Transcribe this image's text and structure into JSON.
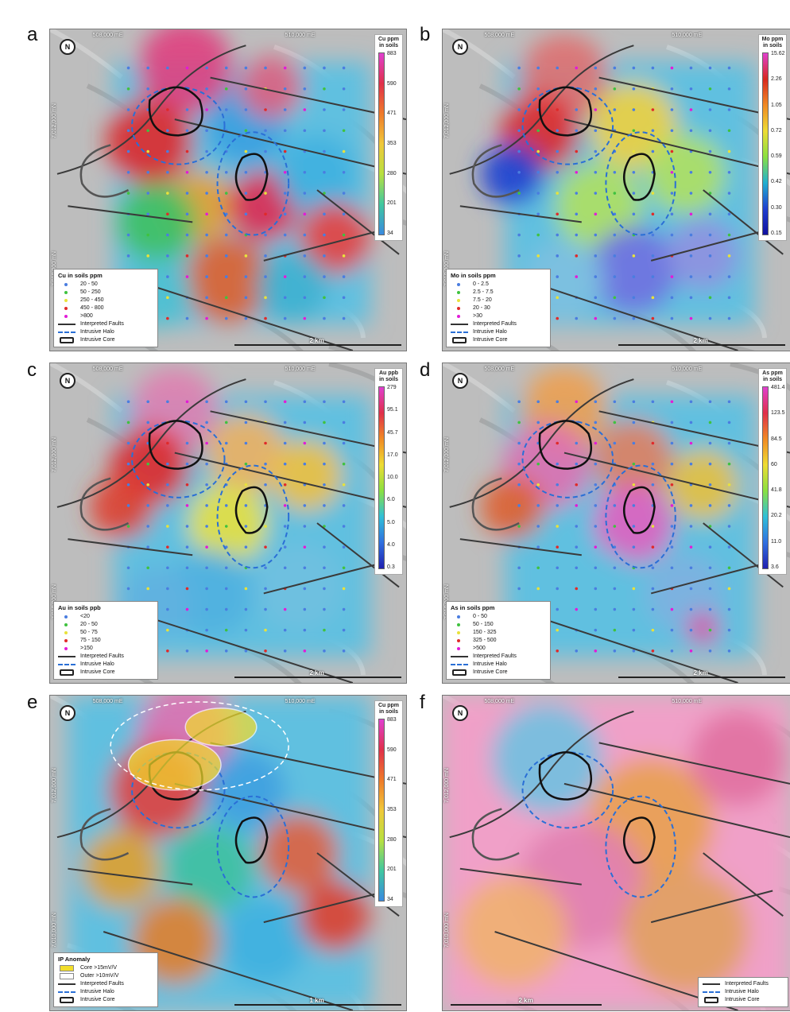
{
  "colors": {
    "fault": "#3a3a3a",
    "halo": "#2a6fd6",
    "core": "#111111"
  },
  "panels": [
    {
      "id": "a",
      "letter": "a",
      "coord_x1": "508,000 mE",
      "coord_x2": "510,000 mE",
      "coord_y1": "7,012,000 mN",
      "coord_y2": "7,010,000 mN",
      "colorbar": {
        "title_line1": "Cu ppm",
        "title_line2": "in soils",
        "ticks": [
          "883",
          "590",
          "471",
          "353",
          "280",
          "201",
          "34"
        ],
        "variant": "cu"
      },
      "legend": {
        "title": "Cu in soils ppm",
        "entries": [
          {
            "label": "20 - 50",
            "color": "#4a7de0"
          },
          {
            "label": "50 - 250",
            "color": "#3fc23f"
          },
          {
            "label": "250 - 450",
            "color": "#e8e23a"
          },
          {
            "label": "450 - 800",
            "color": "#e02a2a"
          },
          {
            "label": ">800",
            "color": "#e21bd8"
          }
        ]
      },
      "lines": {
        "faults": "Interpreted Faults",
        "halo": "Intrusive Halo",
        "core": "Intrusive Core"
      },
      "scale": "2 km"
    },
    {
      "id": "b",
      "letter": "b",
      "coord_x1": "508,000 mE",
      "coord_x2": "510,000 mE",
      "coord_y1": "7,012,000 mN",
      "coord_y2": "7,010,000 mN",
      "colorbar": {
        "title_line1": "Mo ppm",
        "title_line2": "in soils",
        "ticks": [
          "15.62",
          "2.26",
          "1.05",
          "0.72",
          "0.59",
          "0.42",
          "0.30",
          "0.15"
        ],
        "variant": "mo"
      },
      "legend": {
        "title": "Mo in soils ppm",
        "entries": [
          {
            "label": "0 - 2.5",
            "color": "#4a7de0"
          },
          {
            "label": "2.5 - 7.5",
            "color": "#3fc23f"
          },
          {
            "label": "7.5 - 20",
            "color": "#e8e23a"
          },
          {
            "label": "20 - 30",
            "color": "#e02a2a"
          },
          {
            "label": ">30",
            "color": "#e21bd8"
          }
        ]
      },
      "lines": {
        "faults": "Interpreted Faults",
        "halo": "Intrusive Halo",
        "core": "Intrusive Core"
      },
      "scale": "2 km"
    },
    {
      "id": "c",
      "letter": "c",
      "coord_x1": "508,000 mE",
      "coord_x2": "510,000 mE",
      "coord_y1": "7,012,000 mN",
      "coord_y2": "7,010,000 mN",
      "colorbar": {
        "title_line1": "Au ppb",
        "title_line2": "in soils",
        "ticks": [
          "279",
          "95.1",
          "45.7",
          "17.0",
          "10.0",
          "6.0",
          "5.0",
          "4.0",
          "0.3"
        ],
        "variant": "au"
      },
      "legend": {
        "title": "Au in soils ppb",
        "entries": [
          {
            "label": "<20",
            "color": "#4a7de0"
          },
          {
            "label": "20 - 50",
            "color": "#3fc23f"
          },
          {
            "label": "50 - 75",
            "color": "#e8e23a"
          },
          {
            "label": "75 - 150",
            "color": "#e02a2a"
          },
          {
            "label": ">150",
            "color": "#e21bd8"
          }
        ]
      },
      "lines": {
        "faults": "Interpreted Faults",
        "halo": "Intrusive Halo",
        "core": "Intrusive Core"
      },
      "scale": "2 km"
    },
    {
      "id": "d",
      "letter": "d",
      "coord_x1": "508,000 mE",
      "coord_x2": "510,000 mE",
      "coord_y1": "7,012,000 mN",
      "coord_y2": "7,010,000 mN",
      "colorbar": {
        "title_line1": "As ppm",
        "title_line2": "in soils",
        "ticks": [
          "481.4",
          "123.5",
          "84.5",
          "60",
          "41.8",
          "20.2",
          "11.0",
          "3.6"
        ],
        "variant": "as"
      },
      "legend": {
        "title": "As in soils ppm",
        "entries": [
          {
            "label": "0 - 50",
            "color": "#4a7de0"
          },
          {
            "label": "50 - 150",
            "color": "#3fc23f"
          },
          {
            "label": "150 - 325",
            "color": "#e8e23a"
          },
          {
            "label": "325 - 500",
            "color": "#e02a2a"
          },
          {
            "label": ">500",
            "color": "#e21bd8"
          }
        ]
      },
      "lines": {
        "faults": "Interpreted Faults",
        "halo": "Intrusive Halo",
        "core": "Intrusive Core"
      },
      "scale": "2 km"
    },
    {
      "id": "e",
      "letter": "e",
      "coord_x1": "508,000 mE",
      "coord_x2": "510,000 mE",
      "coord_y1": "7,012,000 mN",
      "coord_y2": "7,010,000 mN",
      "colorbar": {
        "title_line1": "Cu ppm",
        "title_line2": "in soils",
        "ticks": [
          "883",
          "590",
          "471",
          "353",
          "280",
          "201",
          "34"
        ],
        "variant": "cu"
      },
      "legend": {
        "title": "IP Anomaly",
        "ip": [
          {
            "label": "Core >15mV/V",
            "color": "#f2de2a"
          },
          {
            "label": "Outer >10mV/V",
            "color": "#ffffff"
          }
        ]
      },
      "lines": {
        "faults": "Interpreted Faults",
        "halo": "Intrusive Halo",
        "core": "Intrusive Core"
      },
      "scale": "1 km"
    },
    {
      "id": "f",
      "letter": "f",
      "coord_x1": "508,000 mE",
      "coord_x2": "510,000 mE",
      "coord_y1": "7,012,000 mN",
      "coord_y2": "7,010,000 mN",
      "legend": {
        "title": ""
      },
      "lines": {
        "faults": "Interpreted Faults",
        "halo": "Intrusive Halo",
        "core": "Intrusive Core"
      },
      "scale": "2 km"
    }
  ]
}
